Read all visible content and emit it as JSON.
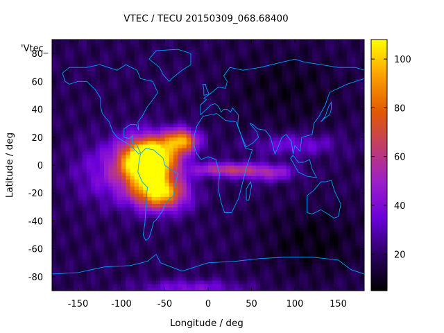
{
  "chart_data": {
    "type": "heatmap",
    "title": "VTEC / TECU 20150309_068.68400",
    "xlabel": "Longitude / deg",
    "ylabel": "Latitude / deg",
    "key_label": "'Vtec_",
    "xlim": [
      -180,
      180
    ],
    "ylim": [
      -90,
      90
    ],
    "x_ticks": [
      -150,
      -100,
      -50,
      0,
      50,
      100,
      150
    ],
    "y_ticks": [
      -80,
      -60,
      -40,
      -20,
      0,
      20,
      40,
      60,
      80
    ],
    "colorbar": {
      "range": [
        5,
        108
      ],
      "ticks": [
        20,
        40,
        60,
        80,
        100
      ],
      "palette": [
        "#000000",
        "#2a0060",
        "#6a00d8",
        "#9c1ecc",
        "#c13d6c",
        "#e25a00",
        "#fba000",
        "#ffff00"
      ]
    },
    "vtec_grid": {
      "lon_step_deg": 5,
      "lat_step_deg": 2.5,
      "background_tecu": 18,
      "enhancements": [
        {
          "region": "eia-north-america-crest",
          "lon_center": -62,
          "lat_center": 8,
          "peak_tecu": 80
        },
        {
          "region": "eia-south-america-peak",
          "lon_center": -72,
          "lat_center": 0,
          "peak_tecu": 102
        },
        {
          "region": "southern-crest-brazil",
          "lon_center": -55,
          "lat_center": -20,
          "peak_tecu": 95
        },
        {
          "region": "eia-atlantic-north",
          "lon_center": -30,
          "lat_center": 18,
          "peak_tecu": 85
        },
        {
          "region": "west-africa-tongue",
          "lon_center": 20,
          "lat_center": -3,
          "peak_tecu": 62
        },
        {
          "region": "indian-ocean-tongue",
          "lon_center": 70,
          "lat_center": -5,
          "peak_tecu": 50
        },
        {
          "region": "asia-band",
          "lon_center": 100,
          "lat_center": 15,
          "peak_tecu": 38
        },
        {
          "region": "south-polar-cap",
          "lon_center": -20,
          "lat_center": -88,
          "peak_tecu": 40
        }
      ]
    },
    "coastlines": {
      "color": "#00a0ff"
    }
  }
}
